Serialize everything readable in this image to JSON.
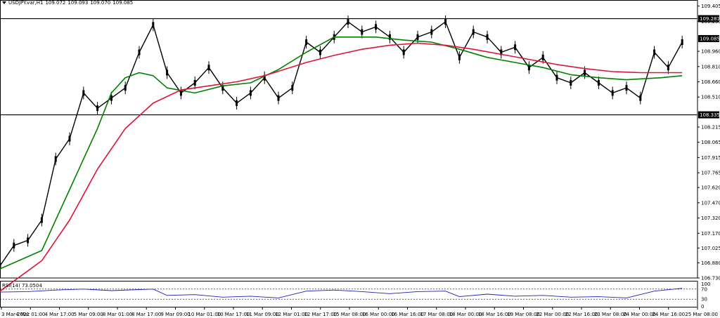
{
  "header": {
    "symbol": "USDJPY.var,H1",
    "open": "109.072",
    "high": "109.093",
    "low": "109.070",
    "close": "109.085"
  },
  "chart_data": {
    "type": "candlestick",
    "y_ticks": [
      "109.405",
      "109.255",
      "108.960",
      "108.810",
      "108.660",
      "108.510",
      "108.215",
      "108.065",
      "107.915",
      "107.765",
      "107.620",
      "107.470",
      "107.320",
      "107.170",
      "107.025",
      "106.880",
      "106.730"
    ],
    "ylim": [
      106.73,
      109.43
    ],
    "x_labels": [
      "3 Mar 2021",
      "4 Mar 01:00",
      "4 Mar 17:00",
      "5 Mar 09:00",
      "8 Mar 01:00",
      "8 Mar 17:00",
      "9 Mar 09:00",
      "10 Mar 01:00",
      "10 Mar 17:00",
      "11 Mar 09:00",
      "12 Mar 01:00",
      "12 Mar 17:00",
      "15 Mar 08:00",
      "16 Mar 00:00",
      "16 Mar 16:00",
      "17 Mar 08:00",
      "18 Mar 00:00",
      "18 Mar 16:00",
      "19 Mar 08:00",
      "22 Mar 00:00",
      "22 Mar 16:00",
      "23 Mar 08:00",
      "24 Mar 00:00",
      "24 Mar 16:00",
      "25 Mar 08:00"
    ],
    "horizontal_lines": [
      {
        "value": 109.281,
        "label": "109.281"
      },
      {
        "value": 108.335,
        "label": "108.335"
      }
    ],
    "last_price": {
      "value": 109.085,
      "label": "109.085"
    },
    "series": [
      {
        "kind": "close_path",
        "color": "#000000",
        "points": [
          [
            0,
            106.85
          ],
          [
            4,
            107.05
          ],
          [
            8,
            107.1
          ],
          [
            12,
            107.3
          ],
          [
            16,
            107.9
          ],
          [
            20,
            108.1
          ],
          [
            24,
            108.55
          ],
          [
            28,
            108.4
          ],
          [
            32,
            108.5
          ],
          [
            36,
            108.6
          ],
          [
            40,
            108.95
          ],
          [
            44,
            109.22
          ],
          [
            48,
            108.75
          ],
          [
            52,
            108.55
          ],
          [
            56,
            108.65
          ],
          [
            60,
            108.8
          ],
          [
            64,
            108.6
          ],
          [
            68,
            108.45
          ],
          [
            72,
            108.55
          ],
          [
            76,
            108.7
          ],
          [
            80,
            108.5
          ],
          [
            84,
            108.6
          ],
          [
            88,
            109.05
          ],
          [
            92,
            108.95
          ],
          [
            96,
            109.1
          ],
          [
            100,
            109.25
          ],
          [
            104,
            109.15
          ],
          [
            108,
            109.2
          ],
          [
            112,
            109.1
          ],
          [
            116,
            108.95
          ],
          [
            120,
            109.1
          ],
          [
            124,
            109.15
          ],
          [
            128,
            109.25
          ],
          [
            132,
            108.9
          ],
          [
            136,
            109.15
          ],
          [
            140,
            109.1
          ],
          [
            144,
            108.95
          ],
          [
            148,
            109.0
          ],
          [
            152,
            108.8
          ],
          [
            156,
            108.9
          ],
          [
            160,
            108.7
          ],
          [
            164,
            108.65
          ],
          [
            168,
            108.75
          ],
          [
            172,
            108.65
          ],
          [
            176,
            108.55
          ],
          [
            180,
            108.6
          ],
          [
            184,
            108.5
          ],
          [
            188,
            108.95
          ],
          [
            192,
            108.8
          ],
          [
            196,
            109.05
          ]
        ]
      },
      {
        "kind": "moving_average",
        "color": "#008000",
        "points": [
          [
            0,
            106.82
          ],
          [
            12,
            107.0
          ],
          [
            20,
            107.6
          ],
          [
            28,
            108.2
          ],
          [
            32,
            108.55
          ],
          [
            36,
            108.7
          ],
          [
            40,
            108.75
          ],
          [
            44,
            108.72
          ],
          [
            48,
            108.6
          ],
          [
            56,
            108.55
          ],
          [
            64,
            108.62
          ],
          [
            72,
            108.65
          ],
          [
            80,
            108.78
          ],
          [
            88,
            108.95
          ],
          [
            96,
            109.1
          ],
          [
            108,
            109.1
          ],
          [
            116,
            109.07
          ],
          [
            124,
            109.05
          ],
          [
            132,
            108.98
          ],
          [
            140,
            108.9
          ],
          [
            148,
            108.85
          ],
          [
            156,
            108.8
          ],
          [
            164,
            108.73
          ],
          [
            172,
            108.7
          ],
          [
            180,
            108.68
          ],
          [
            190,
            108.7
          ],
          [
            196,
            108.72
          ]
        ]
      },
      {
        "kind": "moving_average",
        "color": "#dc143c",
        "points": [
          [
            0,
            106.6
          ],
          [
            12,
            106.9
          ],
          [
            20,
            107.3
          ],
          [
            28,
            107.8
          ],
          [
            36,
            108.2
          ],
          [
            44,
            108.45
          ],
          [
            52,
            108.58
          ],
          [
            60,
            108.62
          ],
          [
            68,
            108.66
          ],
          [
            76,
            108.72
          ],
          [
            88,
            108.85
          ],
          [
            96,
            108.92
          ],
          [
            104,
            108.98
          ],
          [
            112,
            109.02
          ],
          [
            120,
            109.04
          ],
          [
            128,
            109.02
          ],
          [
            136,
            108.98
          ],
          [
            144,
            108.93
          ],
          [
            152,
            108.88
          ],
          [
            160,
            108.83
          ],
          [
            168,
            108.79
          ],
          [
            176,
            108.76
          ],
          [
            184,
            108.75
          ],
          [
            196,
            108.75
          ]
        ]
      }
    ],
    "rsi": {
      "label": "RSI(14) 73.0504",
      "levels": [
        "100",
        "70",
        "30",
        "0"
      ],
      "range": [
        0,
        100
      ],
      "points": [
        [
          0,
          58
        ],
        [
          8,
          60
        ],
        [
          16,
          66
        ],
        [
          24,
          70
        ],
        [
          32,
          64
        ],
        [
          40,
          68
        ],
        [
          44,
          70
        ],
        [
          48,
          45
        ],
        [
          56,
          48
        ],
        [
          64,
          38
        ],
        [
          72,
          42
        ],
        [
          80,
          35
        ],
        [
          88,
          62
        ],
        [
          96,
          66
        ],
        [
          104,
          60
        ],
        [
          112,
          52
        ],
        [
          120,
          60
        ],
        [
          128,
          62
        ],
        [
          132,
          40
        ],
        [
          140,
          50
        ],
        [
          148,
          42
        ],
        [
          156,
          45
        ],
        [
          164,
          38
        ],
        [
          172,
          40
        ],
        [
          180,
          35
        ],
        [
          188,
          62
        ],
        [
          196,
          73
        ]
      ]
    }
  }
}
